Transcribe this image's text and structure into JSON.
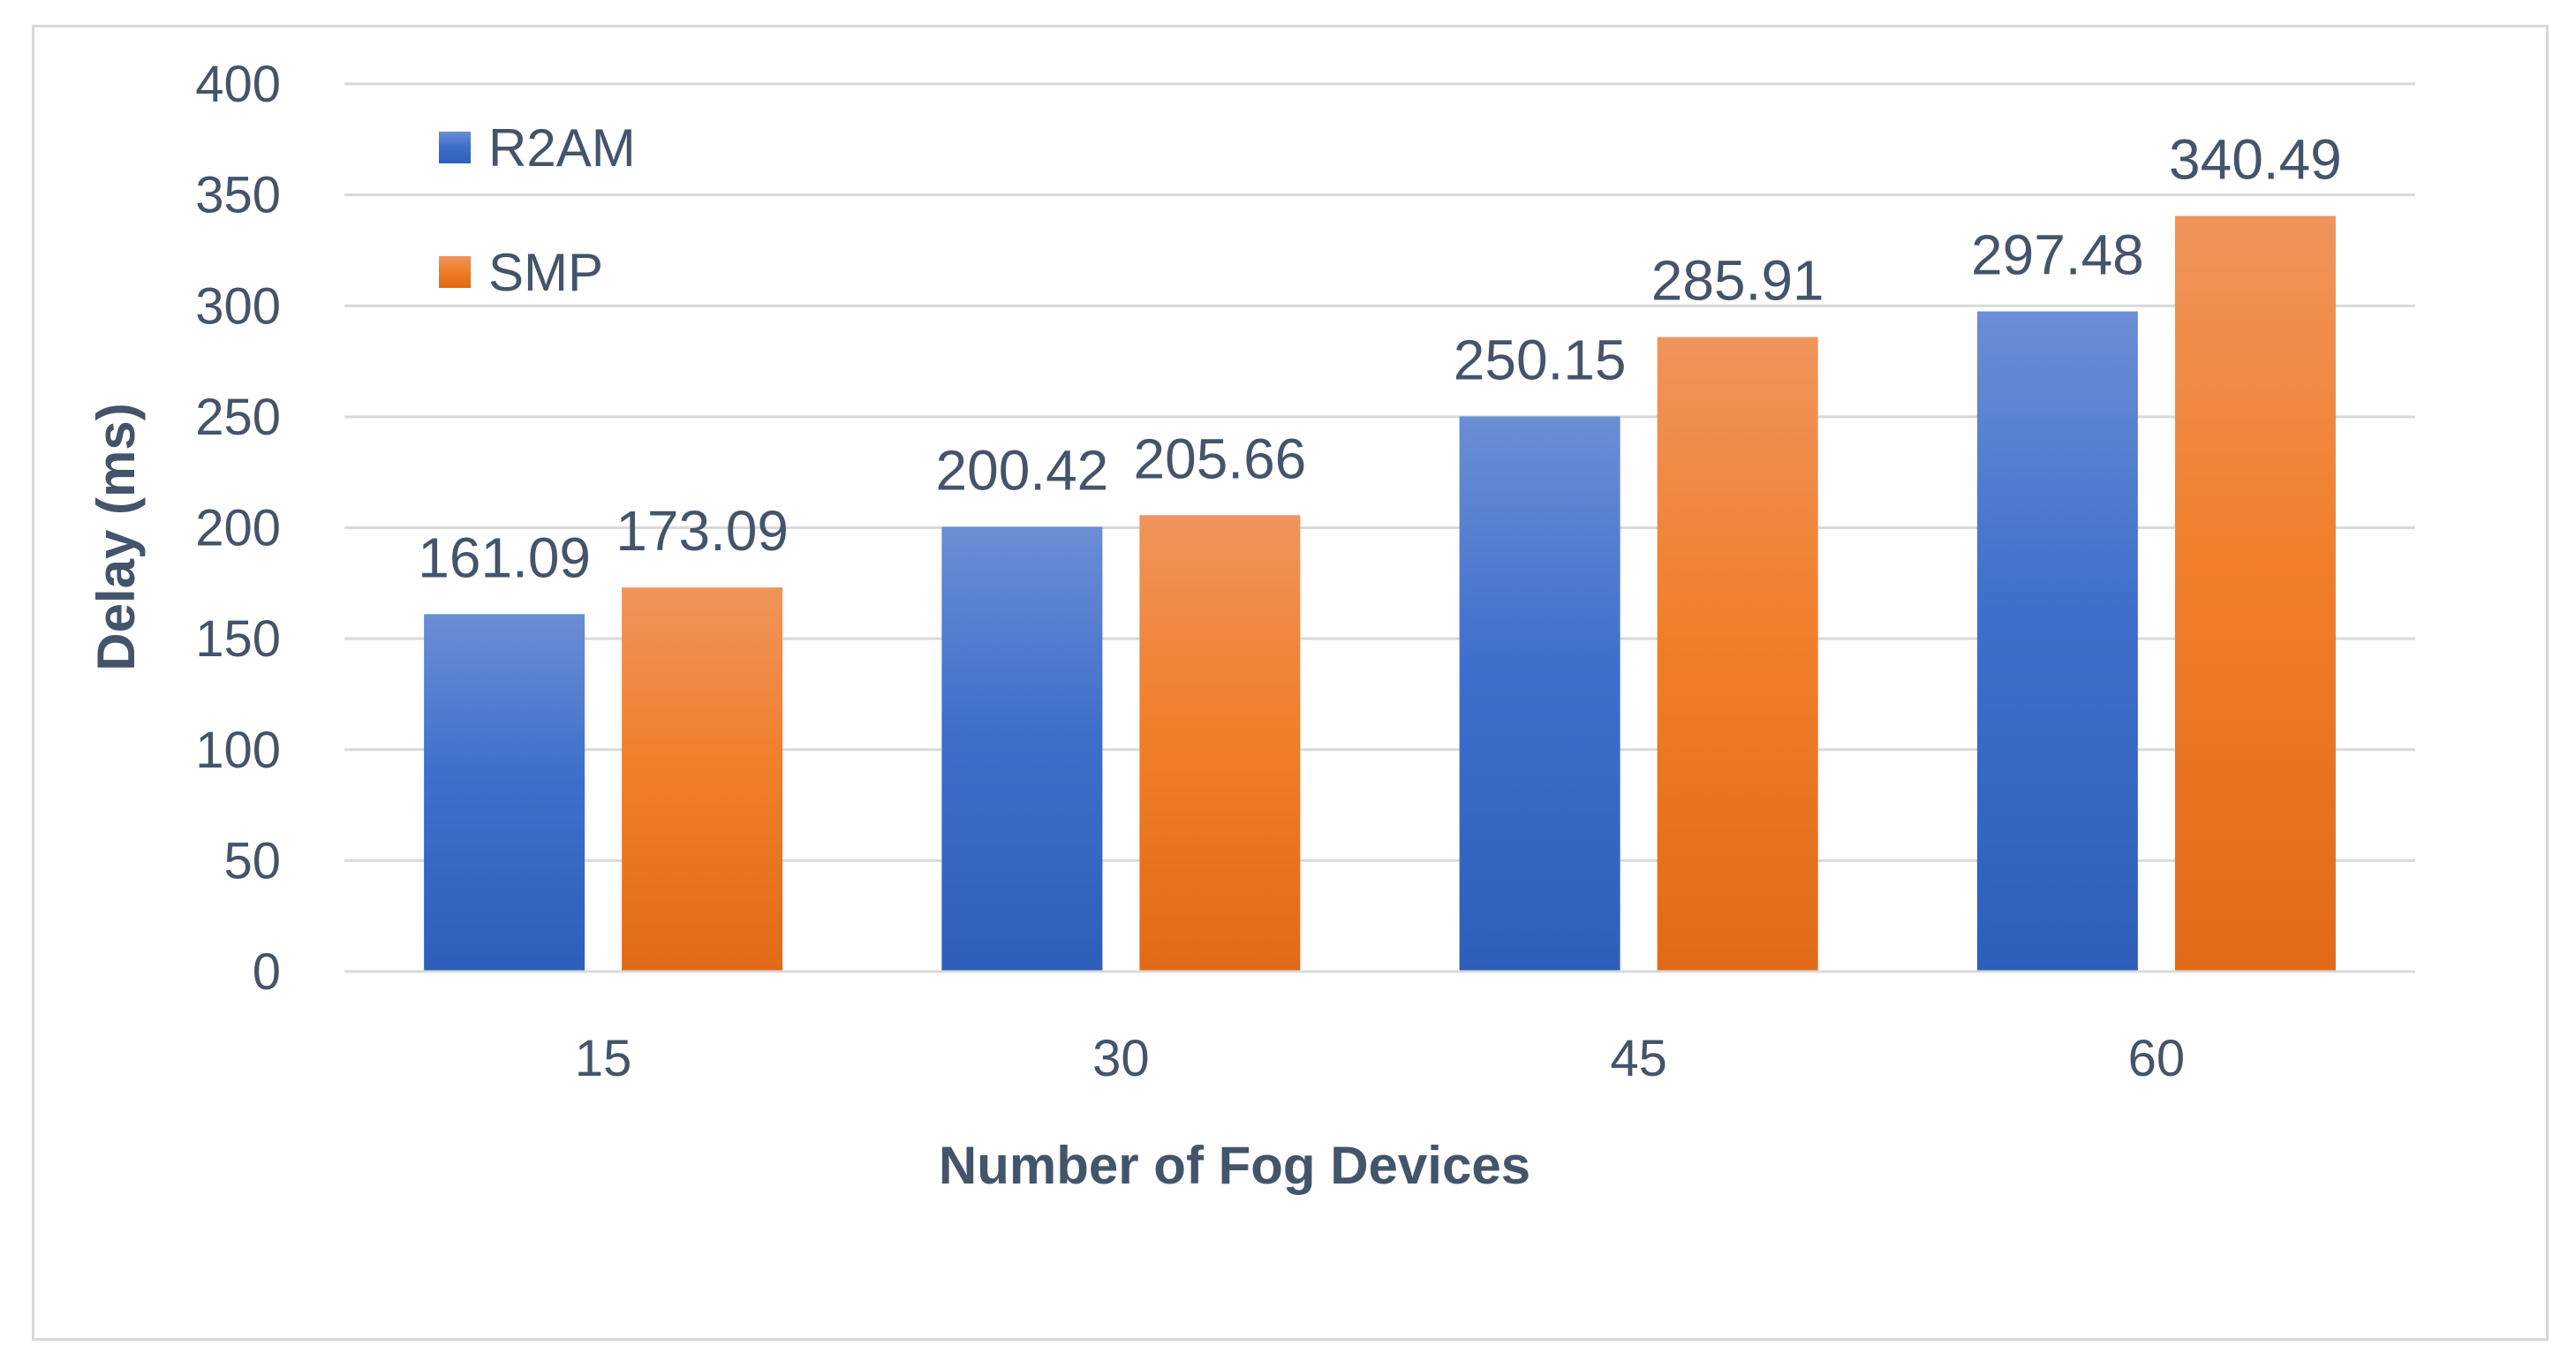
{
  "chart_data": {
    "type": "bar",
    "categories": [
      "15",
      "30",
      "45",
      "60"
    ],
    "series": [
      {
        "name": "R2AM",
        "values": [
          161.09,
          200.42,
          250.15,
          297.48
        ],
        "color": "#4472c4"
      },
      {
        "name": "SMP",
        "values": [
          173.09,
          205.66,
          285.91,
          340.49
        ],
        "color": "#ed7d31"
      }
    ],
    "title": "",
    "xlabel": "Number of Fog Devices",
    "ylabel": "Delay (ms)",
    "ylim": [
      0,
      400
    ],
    "yticks": [
      0,
      50,
      100,
      150,
      200,
      250,
      300,
      350,
      400
    ],
    "grid": true,
    "legend_position": "top-left",
    "data_labels": [
      [
        "161.09",
        "200.42",
        "250.15",
        "297.48"
      ],
      [
        "173.09",
        "205.66",
        "285.91",
        "340.49"
      ]
    ]
  }
}
